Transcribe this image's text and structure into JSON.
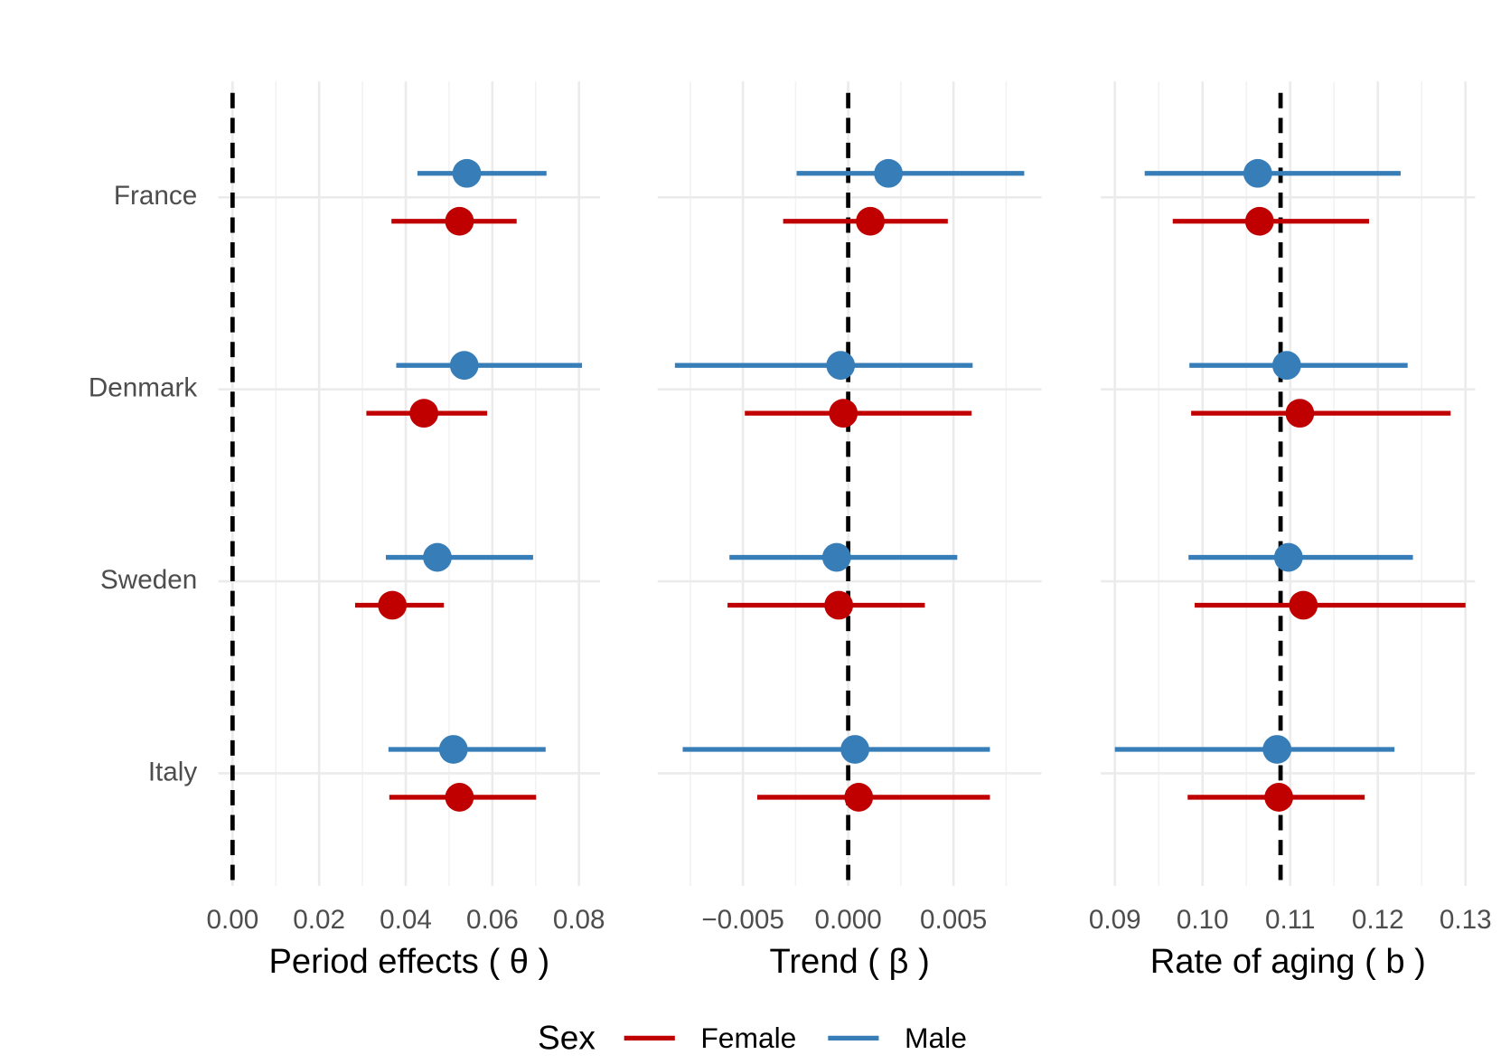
{
  "chart_data": [
    {
      "type": "dotwhisker",
      "xlabel": "Period effects ( θ )",
      "categories": [
        "France",
        "Denmark",
        "Sweden",
        "Italy"
      ],
      "legend_title": "Sex",
      "xlim": [
        -0.0033,
        0.0849
      ],
      "xticks": [
        {
          "value": 0,
          "label": "0.00"
        },
        {
          "value": 0.02,
          "label": "0.02"
        },
        {
          "value": 0.04,
          "label": "0.04"
        },
        {
          "value": 0.06,
          "label": "0.06"
        },
        {
          "value": 0.08,
          "label": "0.08"
        }
      ],
      "xminor": [
        0.01,
        0.03,
        0.05,
        0.07
      ],
      "refline": 0,
      "series": [
        {
          "name": "Female",
          "color": "#c00000",
          "values": [
            0.0524,
            0.0442,
            0.0369,
            0.0524
          ],
          "lower": [
            0.0367,
            0.0309,
            0.0283,
            0.0362
          ],
          "upper": [
            0.0656,
            0.0588,
            0.0488,
            0.0701
          ]
        },
        {
          "name": "Male",
          "color": "#377eb8",
          "values": [
            0.0541,
            0.0535,
            0.0473,
            0.051
          ],
          "lower": [
            0.0427,
            0.0378,
            0.0354,
            0.036
          ],
          "upper": [
            0.0725,
            0.0807,
            0.0694,
            0.0723
          ]
        }
      ]
    },
    {
      "type": "dotwhisker",
      "xlabel": "Trend ( β )",
      "xlim": [
        -0.00905,
        0.00918
      ],
      "xticks": [
        {
          "value": -0.005,
          "label": "−0.005"
        },
        {
          "value": 0,
          "label": "0.000"
        },
        {
          "value": 0.005,
          "label": "0.005"
        }
      ],
      "xminor": [
        -0.0075,
        -0.0025,
        0.0025,
        0.0075
      ],
      "refline": 0,
      "series": [
        {
          "values": [
            0.00105,
            -0.00023,
            -0.00045,
            0.0005
          ],
          "lower": [
            -0.00309,
            -0.00491,
            -0.00573,
            -0.00432
          ],
          "upper": [
            0.00473,
            0.00586,
            0.00364,
            0.00673
          ]
        },
        {
          "values": [
            0.00191,
            -0.00036,
            -0.00055,
            0.00032
          ],
          "lower": [
            -0.00245,
            -0.00823,
            -0.00564,
            -0.00786
          ],
          "upper": [
            0.00836,
            0.00591,
            0.00518,
            0.00673
          ]
        }
      ]
    },
    {
      "type": "dotwhisker",
      "xlabel": "Rate of aging ( b )",
      "xlim": [
        0.0884,
        0.1311
      ],
      "xticks": [
        {
          "value": 0.09,
          "label": "0.09"
        },
        {
          "value": 0.1,
          "label": "0.10"
        },
        {
          "value": 0.11,
          "label": "0.11"
        },
        {
          "value": 0.12,
          "label": "0.12"
        },
        {
          "value": 0.13,
          "label": "0.13"
        }
      ],
      "xminor": [
        0.095,
        0.105,
        0.115,
        0.125
      ],
      "refline": 0.1089,
      "series": [
        {
          "values": [
            0.1065,
            0.1111,
            0.1115,
            0.1087
          ],
          "lower": [
            0.0966,
            0.0987,
            0.0991,
            0.0983
          ],
          "upper": [
            0.119,
            0.1283,
            0.13,
            0.1185
          ]
        },
        {
          "values": [
            0.1063,
            0.1096,
            0.1098,
            0.1085
          ],
          "lower": [
            0.0934,
            0.0985,
            0.0984,
            0.09
          ],
          "upper": [
            0.1226,
            0.1234,
            0.124,
            0.1219
          ]
        }
      ]
    }
  ]
}
